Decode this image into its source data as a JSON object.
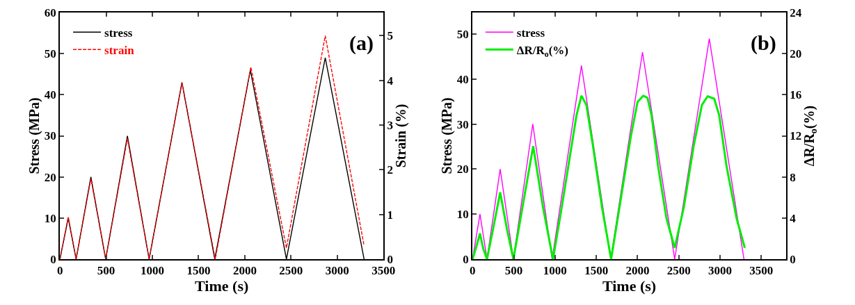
{
  "chart_data": [
    {
      "type": "line",
      "xlabel": "Time (s)",
      "ylabel": "Stress (MPa)",
      "y2label": "Strain (%)",
      "annotations": [
        "(a)"
      ],
      "xlim": [
        0,
        3500
      ],
      "xticks": [
        0,
        500,
        1000,
        1500,
        2000,
        2500,
        3000,
        3500
      ],
      "ylim": [
        0,
        60
      ],
      "yticks": [
        0,
        10,
        20,
        30,
        40,
        50,
        60
      ],
      "y2lim": [
        0,
        5.52
      ],
      "y2ticks": [
        0,
        1,
        2,
        3,
        4,
        5
      ],
      "legend": "top left",
      "series": [
        {
          "name": "stress",
          "color": "#000000",
          "line_style": "solid",
          "x": [
            0,
            90,
            175,
            335,
            495,
            730,
            965,
            1320,
            1675,
            2060,
            2450,
            2870,
            3290
          ],
          "values": [
            0,
            10,
            0,
            20,
            0,
            30,
            0,
            43,
            0,
            46,
            0,
            49,
            0
          ]
        },
        {
          "name": "strain",
          "color": "#ff0000",
          "line_style": "dashed",
          "axis": "y2",
          "x": [
            0,
            90,
            175,
            335,
            495,
            730,
            965,
            1320,
            1680,
            2065,
            2450,
            2870,
            3290
          ],
          "values": [
            0,
            0.95,
            0,
            1.8,
            0,
            2.7,
            0,
            3.95,
            0,
            4.3,
            0.25,
            5.0,
            0.3
          ]
        }
      ]
    },
    {
      "type": "line",
      "xlabel": "Time (s)",
      "ylabel": "Stress (MPa)",
      "y2label": "ΔR/R$_{o}$(%)",
      "annotations": [
        "(b)"
      ],
      "xlim": [
        0,
        3800
      ],
      "xticks": [
        0,
        500,
        1000,
        1500,
        2000,
        2500,
        3000,
        3500
      ],
      "ylim": [
        0,
        54.8
      ],
      "yticks": [
        0,
        10,
        20,
        30,
        40,
        50
      ],
      "y2lim": [
        0,
        24
      ],
      "y2ticks": [
        0,
        4,
        8,
        12,
        16,
        20,
        24
      ],
      "legend": "top left",
      "series": [
        {
          "name": "stress",
          "color": "#ff00ff",
          "line_style": "solid",
          "x": [
            0,
            90,
            175,
            335,
            495,
            730,
            965,
            1320,
            1675,
            2060,
            2450,
            2870,
            3290
          ],
          "values": [
            0,
            10,
            0,
            20,
            0,
            30,
            0,
            43,
            0,
            46,
            0,
            49,
            0
          ]
        },
        {
          "name": "ΔR/R$_{o}$(%)",
          "color": "#00ee00",
          "line_style": "solid",
          "axis": "y2",
          "x": [
            0,
            45,
            90,
            130,
            175,
            255,
            335,
            415,
            495,
            615,
            735,
            855,
            975,
            1080,
            1180,
            1260,
            1320,
            1380,
            1460,
            1570,
            1680,
            1800,
            1920,
            2000,
            2070,
            2120,
            2170,
            2250,
            2350,
            2450,
            2560,
            2680,
            2780,
            2850,
            2930,
            2990,
            3080,
            3200,
            3300
          ],
          "values": [
            0,
            1.2,
            2.5,
            1.0,
            0,
            3.2,
            6.5,
            3.0,
            0,
            5.5,
            11.0,
            5.0,
            0,
            5,
            10,
            14,
            15.9,
            15,
            11,
            5,
            0,
            6,
            12,
            15.3,
            15.9,
            15.7,
            14,
            9,
            4,
            1.1,
            5,
            11,
            15,
            15.85,
            15.6,
            14,
            9,
            4,
            1.1
          ]
        }
      ]
    }
  ]
}
